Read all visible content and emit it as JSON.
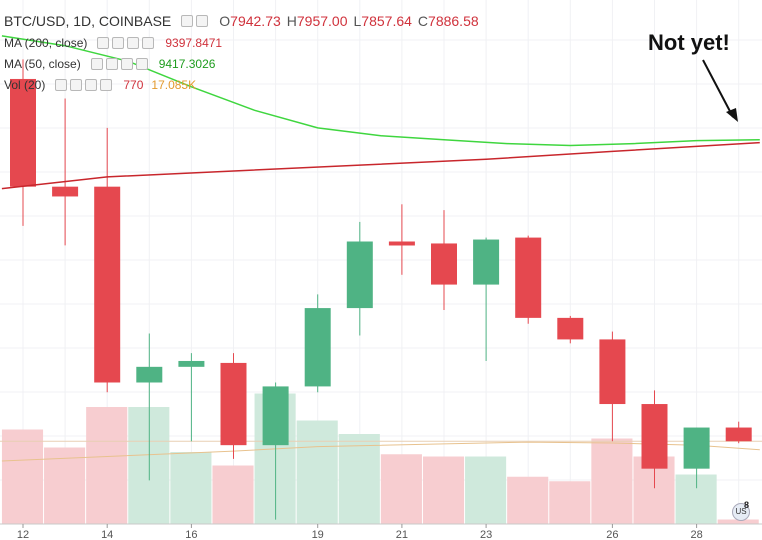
{
  "legend": {
    "symbol": "BTC/USD, 1D, COINBASE",
    "ohlc": [
      {
        "key": "O",
        "value": "7942.73"
      },
      {
        "key": "H",
        "value": "7957.00"
      },
      {
        "key": "L",
        "value": "7857.64"
      },
      {
        "key": "C",
        "value": "7886.58"
      }
    ],
    "ma200": {
      "label": "MA (200, close)",
      "value": "9397.8471"
    },
    "ma50": {
      "label": "MA (50, close)",
      "value": "9417.3026"
    },
    "vol": {
      "label": "Vol (20)",
      "value": "770",
      "ma_value": "17.085K"
    }
  },
  "annotation": {
    "text": "Not yet!"
  },
  "flag_badge": "8",
  "colors": {
    "up": "#4fb384",
    "down": "#e5484f",
    "up_volume": "#cfe9dc",
    "down_volume": "#f7cdd0",
    "ma200": "#c8262c",
    "ma50": "#3fd63f",
    "vol_ma": "#e8c28e"
  },
  "chart_data": {
    "type": "candlestick",
    "x_tick_labels": [
      {
        "day": 12,
        "label": "12"
      },
      {
        "day": 14,
        "label": "14"
      },
      {
        "day": 16,
        "label": "16"
      },
      {
        "day": 19,
        "label": "19"
      },
      {
        "day": 21,
        "label": "21"
      },
      {
        "day": 23,
        "label": "23"
      },
      {
        "day": 26,
        "label": "26"
      },
      {
        "day": 28,
        "label": "28"
      }
    ],
    "ylim": [
      7400,
      9800
    ],
    "volume_max": 30000,
    "candles": [
      {
        "day": 12,
        "open": 9550,
        "high": 9650,
        "low": 8800,
        "close": 9000,
        "volume": 21000
      },
      {
        "day": 13,
        "open": 9000,
        "high": 9450,
        "low": 8700,
        "close": 8950,
        "volume": 17000
      },
      {
        "day": 14,
        "open": 9000,
        "high": 9300,
        "low": 7950,
        "close": 8000,
        "volume": 26000
      },
      {
        "day": 15,
        "open": 8000,
        "high": 8250,
        "low": 7500,
        "close": 8080,
        "volume": 26000
      },
      {
        "day": 16,
        "open": 8080,
        "high": 8150,
        "low": 7700,
        "close": 8110,
        "volume": 16000
      },
      {
        "day": 17,
        "open": 8100,
        "high": 8150,
        "low": 7610,
        "close": 7680,
        "volume": 13000
      },
      {
        "day": 18,
        "open": 7680,
        "high": 8000,
        "low": 7300,
        "close": 7980,
        "volume": 29000
      },
      {
        "day": 19,
        "open": 7980,
        "high": 8450,
        "low": 7950,
        "close": 8380,
        "volume": 23000
      },
      {
        "day": 20,
        "open": 8380,
        "high": 8820,
        "low": 8240,
        "close": 8720,
        "volume": 20000
      },
      {
        "day": 21,
        "open": 8720,
        "high": 8910,
        "low": 8550,
        "close": 8700,
        "volume": 15500
      },
      {
        "day": 22,
        "open": 8710,
        "high": 8880,
        "low": 8370,
        "close": 8500,
        "volume": 15000
      },
      {
        "day": 23,
        "open": 8500,
        "high": 8740,
        "low": 8110,
        "close": 8730,
        "volume": 15000
      },
      {
        "day": 24,
        "open": 8740,
        "high": 8750,
        "low": 8300,
        "close": 8330,
        "volume": 10500
      },
      {
        "day": 25,
        "open": 8330,
        "high": 8340,
        "low": 8200,
        "close": 8220,
        "volume": 9500
      },
      {
        "day": 26,
        "open": 8220,
        "high": 8260,
        "low": 7700,
        "close": 7890,
        "volume": 19000
      },
      {
        "day": 27,
        "open": 7890,
        "high": 7960,
        "low": 7460,
        "close": 7560,
        "volume": 15000
      },
      {
        "day": 28,
        "open": 7560,
        "high": 7770,
        "low": 7460,
        "close": 7770,
        "volume": 11000
      },
      {
        "day": 29,
        "open": 7770,
        "high": 7800,
        "low": 7690,
        "close": 7700,
        "volume": 1000
      }
    ],
    "ma50": [
      {
        "day": 11.5,
        "value": 9770
      },
      {
        "day": 13,
        "value": 9720
      },
      {
        "day": 14.5,
        "value": 9640
      },
      {
        "day": 16,
        "value": 9510
      },
      {
        "day": 17.5,
        "value": 9390
      },
      {
        "day": 19,
        "value": 9300
      },
      {
        "day": 20.5,
        "value": 9260
      },
      {
        "day": 22,
        "value": 9240
      },
      {
        "day": 23.5,
        "value": 9220
      },
      {
        "day": 25,
        "value": 9210
      },
      {
        "day": 26.5,
        "value": 9220
      },
      {
        "day": 28,
        "value": 9235
      },
      {
        "day": 29.5,
        "value": 9240
      }
    ],
    "ma200": [
      {
        "day": 11.5,
        "value": 8990
      },
      {
        "day": 14,
        "value": 9050
      },
      {
        "day": 17,
        "value": 9080
      },
      {
        "day": 20,
        "value": 9110
      },
      {
        "day": 23,
        "value": 9140
      },
      {
        "day": 26,
        "value": 9180
      },
      {
        "day": 29.5,
        "value": 9225
      }
    ],
    "vol_ma": [
      {
        "day": 11.5,
        "value": 14000
      },
      {
        "day": 14,
        "value": 15000
      },
      {
        "day": 17,
        "value": 16200
      },
      {
        "day": 19,
        "value": 17200
      },
      {
        "day": 22,
        "value": 17800
      },
      {
        "day": 24,
        "value": 18200
      },
      {
        "day": 26,
        "value": 18000
      },
      {
        "day": 28,
        "value": 17500
      },
      {
        "day": 29.5,
        "value": 16500
      }
    ]
  }
}
